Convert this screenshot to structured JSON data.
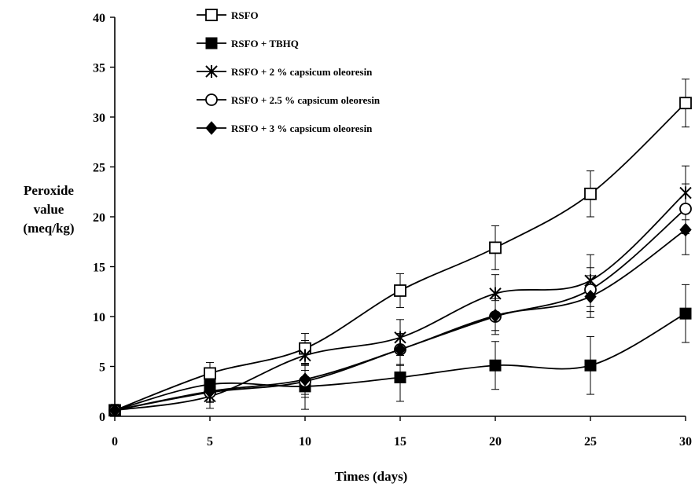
{
  "chart_data": {
    "type": "line",
    "x": [
      0,
      5,
      10,
      15,
      20,
      25,
      30
    ],
    "xlabel": "Times (days)",
    "ylabel": [
      "Peroxide",
      "value",
      "(meq/kg)"
    ],
    "xlim": [
      0,
      30
    ],
    "ylim": [
      0,
      40
    ],
    "xticks": [
      0,
      5,
      10,
      15,
      20,
      25,
      30
    ],
    "yticks": [
      0,
      5,
      10,
      15,
      20,
      25,
      30,
      35,
      40
    ],
    "grid": false,
    "legend_position": "top-left",
    "series": [
      {
        "name": "RSFO",
        "marker": "open-square",
        "values": [
          0.6,
          4.3,
          6.8,
          12.6,
          16.9,
          22.3,
          31.4
        ],
        "errors": [
          0.6,
          1.1,
          1.5,
          1.7,
          2.2,
          2.3,
          2.4
        ]
      },
      {
        "name": "RSFO + TBHQ",
        "marker": "filled-square",
        "values": [
          0.6,
          3.2,
          3.0,
          3.9,
          5.1,
          5.1,
          10.3
        ],
        "errors": [
          0.5,
          1.2,
          2.3,
          2.4,
          2.4,
          2.9,
          2.9
        ]
      },
      {
        "name": "RSFO + 2 % capsicum oleoresin",
        "marker": "asterisk",
        "values": [
          0.6,
          2.0,
          6.1,
          7.9,
          12.3,
          13.6,
          22.4
        ],
        "errors": [
          0.5,
          1.2,
          1.5,
          1.8,
          1.9,
          2.6,
          2.7
        ]
      },
      {
        "name": "RSFO + 2.5 % capsicum oleoresin",
        "marker": "open-circle",
        "values": [
          0.6,
          2.4,
          3.5,
          6.7,
          10.0,
          12.7,
          20.8
        ],
        "errors": [
          0.5,
          1.0,
          1.6,
          1.6,
          1.8,
          2.2,
          2.5
        ]
      },
      {
        "name": "RSFO + 3 % capsicum oleoresin",
        "marker": "filled-diamond",
        "values": [
          0.6,
          2.5,
          3.7,
          6.7,
          10.1,
          12.0,
          18.7
        ],
        "errors": [
          0.5,
          1.0,
          1.5,
          1.5,
          1.5,
          2.1,
          2.5
        ]
      }
    ]
  }
}
